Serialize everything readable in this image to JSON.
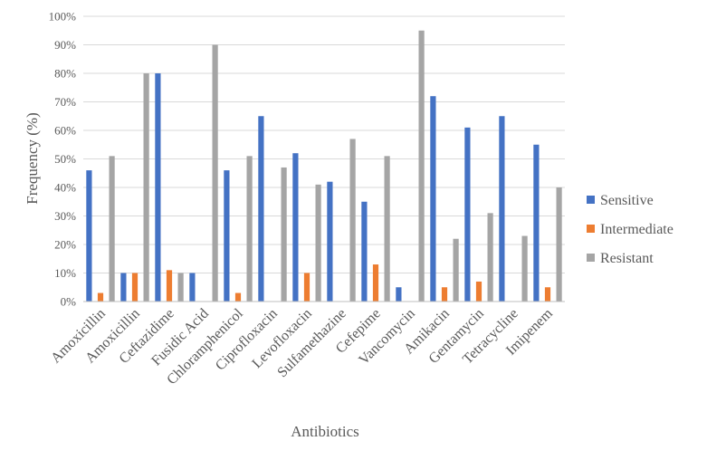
{
  "chart_data": {
    "type": "bar",
    "title": "",
    "xlabel": "Antibiotics",
    "ylabel": "Frequency (%)",
    "ylim": [
      0,
      100
    ],
    "ytick_step": 10,
    "ytick_suffix": "%",
    "grid": true,
    "legend_position": "right",
    "categories": [
      "Amoxicillin",
      "Amoxicillin",
      "Ceftazidime",
      "Fusidic Acid",
      "Chloramphenicol",
      "Ciprofloxacin",
      "Levofloxacin",
      "Sulfamethazine",
      "Cefepime",
      "Vancomycin",
      "Amikacin",
      "Gentamycin",
      "Tetracycline",
      "Imipenem"
    ],
    "series": [
      {
        "name": "Sensitive",
        "color": "#4472C4",
        "values": [
          46,
          10,
          80,
          10,
          46,
          65,
          52,
          42,
          35,
          5,
          72,
          61,
          65,
          55
        ]
      },
      {
        "name": "Intermediate",
        "color": "#ED7D31",
        "values": [
          3,
          10,
          11,
          0,
          3,
          0,
          10,
          0,
          13,
          0,
          5,
          7,
          0,
          5
        ]
      },
      {
        "name": "Resistant",
        "color": "#A5A5A5",
        "values": [
          51,
          80,
          10,
          90,
          51,
          47,
          41,
          57,
          51,
          95,
          22,
          31,
          23,
          40
        ]
      }
    ]
  }
}
